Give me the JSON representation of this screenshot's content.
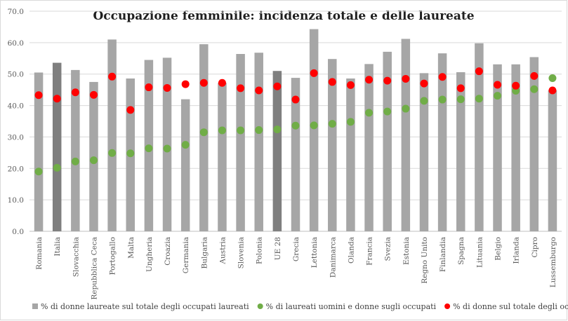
{
  "chart_data": {
    "type": "bar",
    "title": "Occupazione femminile: incidenza totale e delle laureate",
    "xlabel": "",
    "ylabel": "",
    "ylim": [
      0,
      70
    ],
    "yticks": [
      "0.0",
      "10.0",
      "20.0",
      "30.0",
      "40.0",
      "50.0",
      "60.0",
      "70.0"
    ],
    "grid": true,
    "legend_position": "bottom",
    "categories": [
      "Romania",
      "Italia",
      "Slovacchia",
      "Repubblica Ceca",
      "Portogallo",
      "Malta",
      "Ungheria",
      "Croazia",
      "Germania",
      "Bulgaria",
      "Austria",
      "Slovenia",
      "Polonia",
      "UE 28",
      "Grecia",
      "Lettonia",
      "Danimarca",
      "Olanda",
      "Francia",
      "Svezia",
      "Estonia",
      "Regno Unito",
      "Finlandia",
      "Spagna",
      "Lituania",
      "Belgio",
      "Irlanda",
      "Cipro",
      "Lussemburgo"
    ],
    "highlighted_categories": [
      "Italia",
      "UE 28"
    ],
    "series": [
      {
        "name": "% di donne laureate sul totale degli occupati laureati",
        "type": "bar",
        "color": "#a6a6a6",
        "highlight_color": "#7f7f7f",
        "values": [
          50.5,
          53.6,
          51.3,
          47.5,
          61.0,
          48.6,
          54.5,
          55.2,
          42.0,
          59.5,
          47.2,
          56.4,
          56.8,
          51.0,
          48.8,
          64.3,
          54.8,
          48.6,
          53.2,
          57.1,
          61.2,
          50.3,
          56.6,
          50.6,
          59.8,
          53.1,
          53.1,
          55.4,
          44.8
        ]
      },
      {
        "name": "% di laureati uomini e donne sugli occupati",
        "type": "scatter",
        "color": "#70ad47",
        "values": [
          19.0,
          20.2,
          22.2,
          22.6,
          24.9,
          24.8,
          26.4,
          26.3,
          27.5,
          31.5,
          32.1,
          32.1,
          32.2,
          32.4,
          33.6,
          33.7,
          34.2,
          34.8,
          37.7,
          38.1,
          39.0,
          41.5,
          41.9,
          42.0,
          42.2,
          43.1,
          44.7,
          45.2,
          48.7
        ]
      },
      {
        "name": "% di donne sul totale degli occupati",
        "type": "scatter",
        "color": "#ff0000",
        "values": [
          43.3,
          42.2,
          44.2,
          43.4,
          49.2,
          38.6,
          45.8,
          45.6,
          46.8,
          47.2,
          47.2,
          45.5,
          44.8,
          46.1,
          41.9,
          50.3,
          47.5,
          46.5,
          48.2,
          47.9,
          48.5,
          47.0,
          49.1,
          45.5,
          50.9,
          46.6,
          46.3,
          49.4,
          44.8
        ]
      }
    ]
  }
}
